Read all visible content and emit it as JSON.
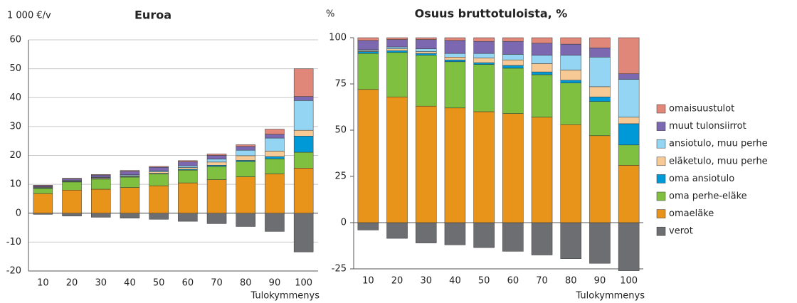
{
  "chart_data": [
    {
      "type": "stacked_bar",
      "title": "Euroa",
      "y_label": "1 000 €/v",
      "x_label": "Tulokymmenys",
      "categories": [
        "10",
        "20",
        "30",
        "40",
        "50",
        "60",
        "70",
        "80",
        "90",
        "100"
      ],
      "ylim": [
        -20,
        60
      ],
      "yticks": [
        -20,
        -10,
        0,
        10,
        20,
        30,
        40,
        50,
        60
      ],
      "grid": true,
      "series": [
        {
          "name": "omaisuustulot",
          "color": "#e0877a",
          "values": [
            0.2,
            0.2,
            0.2,
            0.3,
            0.3,
            0.4,
            0.5,
            0.6,
            1.8,
            9.6
          ]
        },
        {
          "name": "muut tulonsiirrot",
          "color": "#7b68b0",
          "values": [
            0.4,
            0.5,
            0.7,
            1.2,
            1.2,
            1.4,
            1.3,
            1.3,
            1.3,
            1.4
          ]
        },
        {
          "name": "ansiotulo, muu perhe",
          "color": "#93d5f2",
          "values": [
            0.1,
            0.2,
            0.2,
            0.3,
            0.4,
            0.6,
            1.0,
            1.9,
            4.5,
            10.3
          ]
        },
        {
          "name": "eläketulo, muu perhe",
          "color": "#f7c995",
          "values": [
            0.2,
            0.2,
            0.3,
            0.3,
            0.5,
            0.6,
            1.1,
            1.6,
            1.9,
            2.0
          ]
        },
        {
          "name": "oma ansiotulo",
          "color": "#0099d8",
          "values": [
            0.2,
            0.2,
            0.2,
            0.2,
            0.2,
            0.3,
            0.4,
            0.4,
            0.8,
            5.6
          ]
        },
        {
          "name": "oma perhe-eläke",
          "color": "#80c040",
          "values": [
            1.8,
            2.8,
            3.5,
            3.6,
            4.1,
            4.4,
            4.6,
            5.3,
            5.2,
            5.5
          ]
        },
        {
          "name": "omaeläke",
          "color": "#e8941a",
          "values": [
            6.8,
            8.0,
            8.3,
            8.9,
            9.5,
            10.5,
            11.6,
            12.6,
            13.6,
            15.6
          ]
        },
        {
          "name": "verot",
          "color": "#6d6e71",
          "values": [
            -0.4,
            -1.0,
            -1.4,
            -1.7,
            -2.1,
            -2.8,
            -3.6,
            -4.6,
            -6.3,
            -13.4
          ]
        }
      ]
    },
    {
      "type": "stacked_bar",
      "title": "Osuus bruttotuloista, %",
      "y_label": "%",
      "x_label": "Tulokymmenys",
      "categories": [
        "10",
        "20",
        "30",
        "40",
        "50",
        "60",
        "70",
        "80",
        "90",
        "100"
      ],
      "ylim": [
        -25,
        100
      ],
      "yticks": [
        -25,
        0,
        25,
        50,
        75,
        100
      ],
      "grid": false,
      "series": [
        {
          "color": "#e0877a",
          "values": [
            1.5,
            1,
            1,
            1.5,
            2,
            2,
            3,
            3.5,
            5.5,
            19.5
          ]
        },
        {
          "color": "#7b68b0",
          "values": [
            5,
            4,
            5,
            7,
            6.5,
            7,
            6.5,
            6,
            5,
            3
          ]
        },
        {
          "color": "#93d5f2",
          "values": [
            0.5,
            1,
            1.5,
            2,
            2.5,
            3,
            4.5,
            8,
            16,
            20.5
          ]
        },
        {
          "color": "#f7c995",
          "values": [
            0.5,
            1,
            1,
            1.5,
            2.5,
            3,
            4.5,
            5.5,
            5.5,
            3.5
          ]
        },
        {
          "color": "#0099d8",
          "values": [
            1,
            1,
            1,
            1,
            1,
            1.5,
            1.5,
            1.5,
            2.5,
            11.5
          ]
        },
        {
          "color": "#80c040",
          "values": [
            19.5,
            24,
            27.5,
            25,
            25.5,
            24.5,
            23,
            22.5,
            18.5,
            11
          ]
        },
        {
          "color": "#e8941a",
          "values": [
            72,
            68,
            63,
            62,
            60,
            59,
            57,
            53,
            47,
            31
          ]
        },
        {
          "color": "#6d6e71",
          "values": [
            -4,
            -8.5,
            -11,
            -12,
            -13.5,
            -15.5,
            -17.5,
            -19.5,
            -22,
            -26
          ]
        }
      ]
    }
  ]
}
